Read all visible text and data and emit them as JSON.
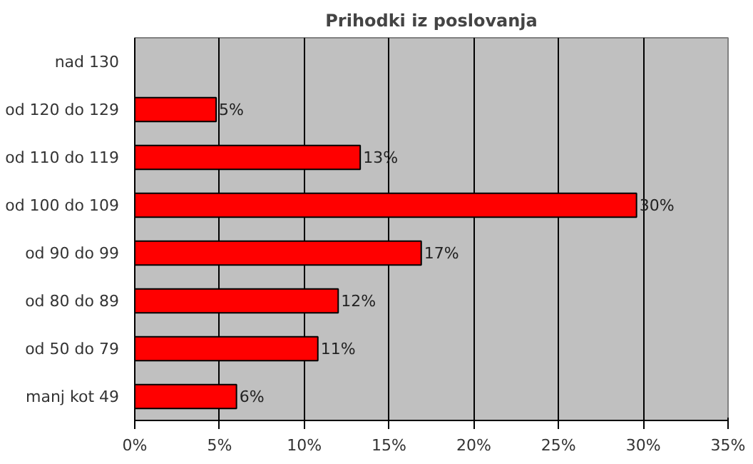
{
  "chart_data": {
    "type": "bar",
    "orientation": "horizontal",
    "title": "Prihodki iz poslovanja",
    "categories": [
      "nad 130",
      "od 120 do 129",
      "od 110 do 119",
      "od 100 do 109",
      "od 90 do 99",
      "od 80 do 89",
      "od 50 do 79",
      "manj kot 49"
    ],
    "values": [
      null,
      4.8,
      13.3,
      29.6,
      16.9,
      12.0,
      10.8,
      6.0
    ],
    "value_labels": [
      null,
      "5%",
      "13%",
      "30%",
      "17%",
      "12%",
      "11%",
      "6%"
    ],
    "color": "#ff0000",
    "xlim": [
      0,
      35
    ],
    "xticks": [
      {
        "value": 0,
        "label": "0%"
      },
      {
        "value": 5,
        "label": "5%"
      },
      {
        "value": 10,
        "label": "10%"
      },
      {
        "value": 15,
        "label": "15%"
      },
      {
        "value": 20,
        "label": "20%"
      },
      {
        "value": 25,
        "label": "25%"
      },
      {
        "value": 30,
        "label": "30%"
      },
      {
        "value": 35,
        "label": "35%"
      }
    ],
    "grid": "x"
  }
}
